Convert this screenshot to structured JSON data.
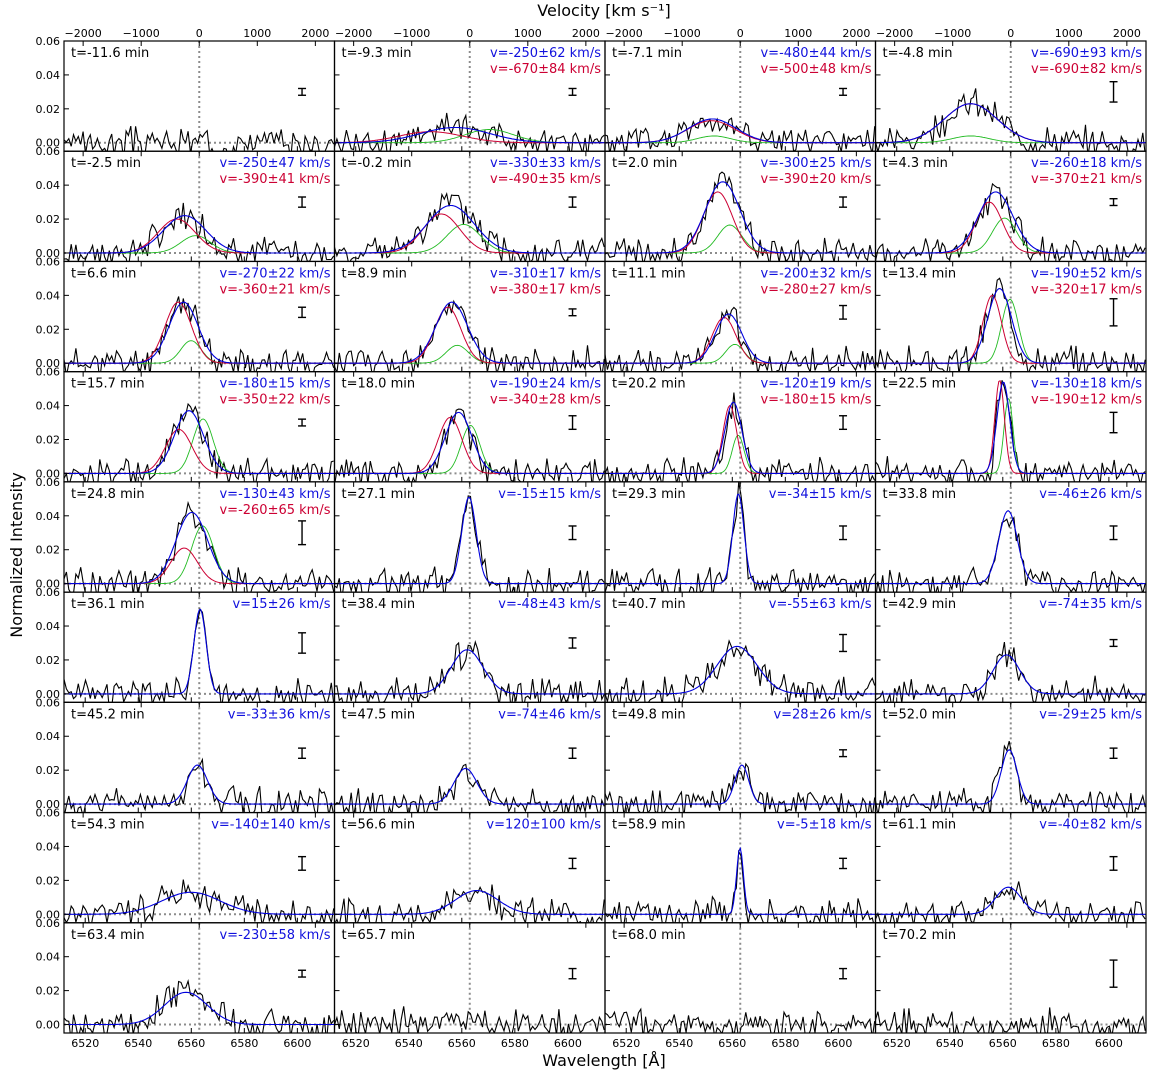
{
  "chart_data": {
    "type": "line",
    "title": "",
    "xlabel": "Wavelength [Å]",
    "ylabel": "Normalized Intensity",
    "top_xlabel": "Velocity [km s⁻¹]",
    "xlim": [
      6512,
      6614
    ],
    "ylim": [
      -0.005,
      0.06
    ],
    "rest_wavelength": 6563,
    "bottom_ticks": [
      "6520",
      "6540",
      "6560",
      "6580",
      "6600"
    ],
    "top_ticks": [
      "−2000",
      "−1000",
      "0",
      "1000",
      "2000"
    ],
    "y_ticks": [
      "0.00",
      "0.02",
      "0.04",
      "0.06"
    ],
    "grid": false,
    "layout": {
      "rows": 9,
      "cols": 4
    },
    "panels": [
      {
        "t": "t=-11.6 min",
        "blue_text": "",
        "red_text": "",
        "blue": null,
        "red": null,
        "err": 0.002
      },
      {
        "t": "t=-9.3 min",
        "blue_text": "v=-250±62 km/s",
        "red_text": "v=-670±84 km/s",
        "blue": {
          "c": 6557.5,
          "a": 0.009,
          "s": 13
        },
        "red": {
          "c": 6548.3,
          "a": 0.0065,
          "s": 12
        },
        "err": 0.002
      },
      {
        "t": "t=-7.1 min",
        "blue_text": "v=-480±44 km/s",
        "red_text": "v=-500±48 km/s",
        "blue": {
          "c": 6552.5,
          "a": 0.014,
          "s": 9
        },
        "red": {
          "c": 6552.1,
          "a": 0.013,
          "s": 9
        },
        "err": 0.002
      },
      {
        "t": "t=-4.8 min",
        "blue_text": "v=-690±93 km/s",
        "red_text": "v=-690±82 km/s",
        "blue": {
          "c": 6547.9,
          "a": 0.023,
          "s": 10
        },
        "red": {
          "c": 6547.9,
          "a": 0.023,
          "s": 10
        },
        "err": 0.006
      },
      {
        "t": "t=-2.5 min",
        "blue_text": "v=-250±47 km/s",
        "red_text": "v=-390±41 km/s",
        "blue": {
          "c": 6557.5,
          "a": 0.022,
          "s": 8
        },
        "red": {
          "c": 6554.5,
          "a": 0.02,
          "s": 7
        },
        "err": 0.003
      },
      {
        "t": "t=-0.2 min",
        "blue_text": "v=-330±33 km/s",
        "red_text": "v=-490±35 km/s",
        "blue": {
          "c": 6555.8,
          "a": 0.028,
          "s": 9
        },
        "red": {
          "c": 6552.3,
          "a": 0.023,
          "s": 7
        },
        "err": 0.003
      },
      {
        "t": "t=2.0 min",
        "blue_text": "v=-300±25 km/s",
        "red_text": "v=-390±20 km/s",
        "blue": {
          "c": 6556.4,
          "a": 0.042,
          "s": 6.5
        },
        "red": {
          "c": 6554.5,
          "a": 0.036,
          "s": 5.5
        },
        "err": 0.003
      },
      {
        "t": "t=4.3 min",
        "blue_text": "v=-260±18 km/s",
        "red_text": "v=-370±21 km/s",
        "blue": {
          "c": 6557.3,
          "a": 0.036,
          "s": 6.5
        },
        "red": {
          "c": 6554.9,
          "a": 0.03,
          "s": 5
        },
        "err": 0.002
      },
      {
        "t": "t=6.6 min",
        "blue_text": "v=-270±22 km/s",
        "red_text": "v=-360±21 km/s",
        "blue": {
          "c": 6557.1,
          "a": 0.036,
          "s": 5.5
        },
        "red": {
          "c": 6555.1,
          "a": 0.036,
          "s": 5
        },
        "err": 0.003
      },
      {
        "t": "t=8.9 min",
        "blue_text": "v=-310±17 km/s",
        "red_text": "v=-380±17 km/s",
        "blue": {
          "c": 6556.2,
          "a": 0.036,
          "s": 6
        },
        "red": {
          "c": 6554.7,
          "a": 0.033,
          "s": 5
        },
        "err": 0.002
      },
      {
        "t": "t=11.1 min",
        "blue_text": "v=-200±32 km/s",
        "red_text": "v=-280±27 km/s",
        "blue": {
          "c": 6558.6,
          "a": 0.029,
          "s": 5
        },
        "red": {
          "c": 6556.9,
          "a": 0.027,
          "s": 4.5
        },
        "err": 0.004
      },
      {
        "t": "t=13.4 min",
        "blue_text": "v=-190±52 km/s",
        "red_text": "v=-320±17 km/s",
        "blue": {
          "c": 6558.8,
          "a": 0.044,
          "s": 4.5
        },
        "red": {
          "c": 6556,
          "a": 0.04,
          "s": 3.5
        },
        "err": 0.008
      },
      {
        "t": "t=15.7 min",
        "blue_text": "v=-180±15 km/s",
        "red_text": "v=-350±22 km/s",
        "blue": {
          "c": 6559.1,
          "a": 0.037,
          "s": 5.5
        },
        "red": {
          "c": 6555.3,
          "a": 0.026,
          "s": 5
        },
        "err": 0.002
      },
      {
        "t": "t=18.0 min",
        "blue_text": "v=-190±24 km/s",
        "red_text": "v=-340±28 km/s",
        "blue": {
          "c": 6558.8,
          "a": 0.036,
          "s": 5
        },
        "red": {
          "c": 6555.6,
          "a": 0.033,
          "s": 4.5
        },
        "err": 0.004
      },
      {
        "t": "t=20.2 min",
        "blue_text": "v=-120±19 km/s",
        "red_text": "v=-180±15 km/s",
        "blue": {
          "c": 6560.4,
          "a": 0.042,
          "s": 3.2
        },
        "red": {
          "c": 6559.1,
          "a": 0.04,
          "s": 2.6
        },
        "err": 0.004
      },
      {
        "t": "t=22.5 min",
        "blue_text": "v=-130±18 km/s",
        "red_text": "v=-190±12 km/s",
        "blue": {
          "c": 6560.2,
          "a": 0.054,
          "s": 2.4
        },
        "red": {
          "c": 6558.8,
          "a": 0.055,
          "s": 1.8
        },
        "err": 0.006
      },
      {
        "t": "t=24.8 min",
        "blue_text": "v=-130±43 km/s",
        "red_text": "v=-260±65 km/s",
        "blue": {
          "c": 6560.2,
          "a": 0.042,
          "s": 6
        },
        "red": {
          "c": 6557.3,
          "a": 0.021,
          "s": 5
        },
        "err": 0.007
      },
      {
        "t": "t=27.1 min",
        "blue_text": "v=-15±15 km/s",
        "red_text": "",
        "blue": {
          "c": 6562.7,
          "a": 0.051,
          "s": 2.7
        },
        "red": null,
        "err": 0.004
      },
      {
        "t": "t=29.3 min",
        "blue_text": "v=-34±15 km/s",
        "red_text": "",
        "blue": {
          "c": 6562.3,
          "a": 0.053,
          "s": 2.1
        },
        "red": null,
        "err": 0.004
      },
      {
        "t": "t=33.8 min",
        "blue_text": "v=-46±26 km/s",
        "red_text": "",
        "blue": {
          "c": 6562,
          "a": 0.043,
          "s": 3.5
        },
        "red": null,
        "err": 0.004
      },
      {
        "t": "t=36.1 min",
        "blue_text": "v=15±26 km/s",
        "red_text": "",
        "blue": {
          "c": 6563.3,
          "a": 0.05,
          "s": 2.3
        },
        "red": null,
        "err": 0.006
      },
      {
        "t": "t=38.4 min",
        "blue_text": "v=-48±43 km/s",
        "red_text": "",
        "blue": {
          "c": 6562,
          "a": 0.026,
          "s": 6
        },
        "red": null,
        "err": 0.003
      },
      {
        "t": "t=40.7 min",
        "blue_text": "v=-55±63 km/s",
        "red_text": "",
        "blue": {
          "c": 6561.8,
          "a": 0.028,
          "s": 7.5
        },
        "red": null,
        "err": 0.005
      },
      {
        "t": "t=42.9 min",
        "blue_text": "v=-74±35 km/s",
        "red_text": "",
        "blue": {
          "c": 6561.4,
          "a": 0.023,
          "s": 5
        },
        "red": null,
        "err": 0.002
      },
      {
        "t": "t=45.2 min",
        "blue_text": "v=-33±36 km/s",
        "red_text": "",
        "blue": {
          "c": 6562.3,
          "a": 0.023,
          "s": 3.8
        },
        "red": null,
        "err": 0.003
      },
      {
        "t": "t=47.5 min",
        "blue_text": "v=-74±46 km/s",
        "red_text": "",
        "blue": {
          "c": 6561.4,
          "a": 0.021,
          "s": 4.3
        },
        "red": null,
        "err": 0.003
      },
      {
        "t": "t=49.8 min",
        "blue_text": "v=28±26 km/s",
        "red_text": "",
        "blue": {
          "c": 6563.6,
          "a": 0.023,
          "s": 2.6
        },
        "red": null,
        "err": 0.002
      },
      {
        "t": "t=52.0 min",
        "blue_text": "v=-29±25 km/s",
        "red_text": "",
        "blue": {
          "c": 6562.4,
          "a": 0.032,
          "s": 3
        },
        "red": null,
        "err": 0.003
      },
      {
        "t": "t=54.3 min",
        "blue_text": "v=-140±140 km/s",
        "red_text": "",
        "blue": {
          "c": 6559.9,
          "a": 0.013,
          "s": 11
        },
        "red": null,
        "err": 0.004
      },
      {
        "t": "t=56.6 min",
        "blue_text": "v=120±100 km/s",
        "red_text": "",
        "blue": {
          "c": 6565.6,
          "a": 0.014,
          "s": 8
        },
        "red": null,
        "err": 0.003
      },
      {
        "t": "t=58.9 min",
        "blue_text": "v=-5±18 km/s",
        "red_text": "",
        "blue": {
          "c": 6562.9,
          "a": 0.039,
          "s": 1.3
        },
        "red": null,
        "err": 0.003
      },
      {
        "t": "t=61.1 min",
        "blue_text": "v=-40±82 km/s",
        "red_text": "",
        "blue": {
          "c": 6562.1,
          "a": 0.016,
          "s": 4.8
        },
        "red": null,
        "err": 0.004
      },
      {
        "t": "t=63.4 min",
        "blue_text": "v=-230±58 km/s",
        "red_text": "",
        "blue": {
          "c": 6558,
          "a": 0.019,
          "s": 8
        },
        "red": null,
        "err": 0.002
      },
      {
        "t": "t=65.7 min",
        "blue_text": "",
        "red_text": "",
        "blue": null,
        "red": null,
        "err": 0.003
      },
      {
        "t": "t=68.0 min",
        "blue_text": "",
        "red_text": "",
        "blue": null,
        "red": null,
        "err": 0.003
      },
      {
        "t": "t=70.2 min",
        "blue_text": "",
        "red_text": "",
        "blue": null,
        "red": null,
        "err": 0.008
      }
    ]
  }
}
